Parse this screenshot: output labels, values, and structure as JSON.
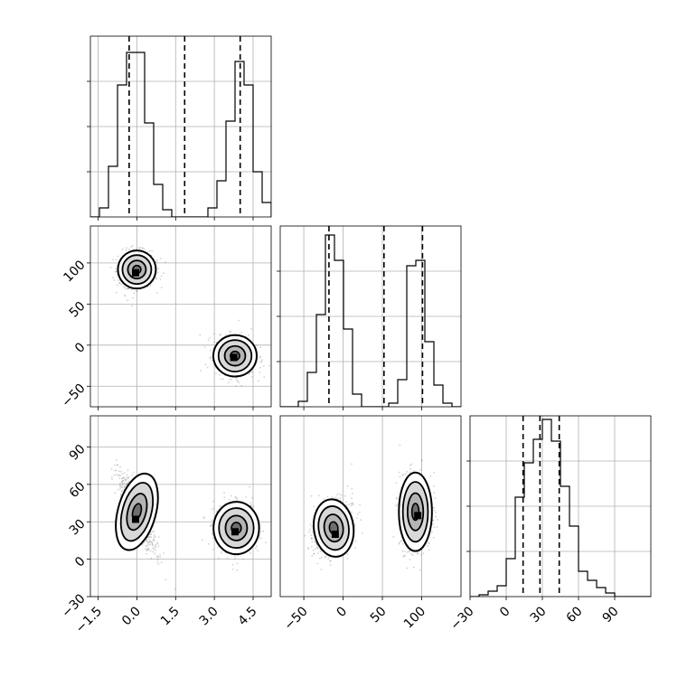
{
  "chart_data": {
    "type": "corner",
    "parameters": 3,
    "grid": true,
    "panels": [
      {
        "id": "hist-p1",
        "type": "histogram",
        "row": 0,
        "col": 0,
        "xlim": [
          -1.8,
          5.2
        ],
        "ylim": [
          0,
          1.0
        ],
        "xticks": [
          -1.5,
          0.0,
          1.5,
          3.0,
          4.5
        ],
        "yticks": [
          0.25,
          0.5,
          0.75
        ],
        "bin_edges": [
          -1.8,
          -1.45,
          -1.1,
          -0.75,
          -0.4,
          -0.05,
          0.3,
          0.65,
          1.0,
          1.35,
          1.7,
          2.05,
          2.4,
          2.75,
          3.1,
          3.45,
          3.8,
          4.15,
          4.5,
          4.85,
          5.2
        ],
        "counts": [
          0.0,
          0.05,
          0.28,
          0.73,
          0.91,
          0.91,
          0.52,
          0.18,
          0.04,
          0.0,
          0.0,
          0.0,
          0.0,
          0.05,
          0.2,
          0.53,
          0.86,
          0.73,
          0.25,
          0.08
        ],
        "quantile_lines": [
          -0.3,
          1.85,
          4.0
        ]
      },
      {
        "id": "scatter-p1-p2",
        "type": "scatter_contour",
        "row": 1,
        "col": 0,
        "xlim": [
          -1.8,
          5.2
        ],
        "ylim": [
          -75,
          145
        ],
        "xticks": [
          -1.5,
          0.0,
          1.5,
          3.0,
          4.5
        ],
        "yticks": [
          -50,
          0,
          50,
          100
        ],
        "ytick_labels": [
          "−50",
          "0",
          "50",
          "100"
        ],
        "clusters": [
          {
            "center": [
              0.0,
              92
            ],
            "sx": 0.35,
            "sy": 11,
            "rho": 0.0,
            "mode": [
              -0.05,
              88
            ]
          },
          {
            "center": [
              3.8,
              -13
            ],
            "sx": 0.4,
            "sy": 12,
            "rho": 0.0,
            "mode": [
              3.75,
              -15
            ]
          }
        ]
      },
      {
        "id": "hist-p2",
        "type": "histogram",
        "row": 1,
        "col": 1,
        "xlim": [
          -80,
          150
        ],
        "ylim": [
          0,
          1.0
        ],
        "xticks": [
          -50,
          0,
          50,
          100
        ],
        "yticks": [
          0.25,
          0.5,
          0.75
        ],
        "bin_edges": [
          -80,
          -68.5,
          -57,
          -45.5,
          -34,
          -22.5,
          -11,
          0.5,
          12,
          23.5,
          35,
          46.5,
          58,
          69.5,
          81,
          92.5,
          104,
          115.5,
          127,
          138.5,
          150
        ],
        "counts": [
          0.0,
          0.0,
          0.03,
          0.19,
          0.51,
          0.95,
          0.81,
          0.43,
          0.07,
          0.0,
          0.0,
          0.0,
          0.02,
          0.15,
          0.78,
          0.81,
          0.36,
          0.12,
          0.02,
          0.0
        ],
        "quantile_lines": [
          -18,
          52,
          101
        ]
      },
      {
        "id": "scatter-p1-p3",
        "type": "scatter_contour",
        "row": 2,
        "col": 0,
        "xlim": [
          -1.8,
          5.2
        ],
        "ylim": [
          -30,
          115
        ],
        "xticks": [
          -1.5,
          0.0,
          1.5,
          3.0,
          4.5
        ],
        "xtick_labels": [
          "−1.5",
          "0.0",
          "1.5",
          "3.0",
          "4.5"
        ],
        "yticks": [
          -30,
          0,
          30,
          60,
          90
        ],
        "ytick_labels": [
          "−30",
          "0",
          "30",
          "60",
          "90"
        ],
        "clusters": [
          {
            "center": [
              0.0,
              38
            ],
            "sx": 0.35,
            "sy": 15,
            "rho": -0.85,
            "mode": [
              -0.05,
              32
            ]
          },
          {
            "center": [
              3.85,
              25
            ],
            "sx": 0.42,
            "sy": 10,
            "rho": 0.0,
            "mode": [
              3.8,
              22
            ]
          }
        ]
      },
      {
        "id": "scatter-p2-p3",
        "type": "scatter_contour",
        "row": 2,
        "col": 1,
        "xlim": [
          -80,
          150
        ],
        "ylim": [
          -30,
          115
        ],
        "xticks": [
          -50,
          0,
          50,
          100
        ],
        "xtick_labels": [
          "−50",
          "0",
          "50",
          "100"
        ],
        "clusters": [
          {
            "center": [
              -12,
              25
            ],
            "sx": 12,
            "sy": 11,
            "rho": 0.3,
            "mode": [
              -10,
              20
            ]
          },
          {
            "center": [
              92,
              38
            ],
            "sx": 10,
            "sy": 15,
            "rho": 0.0,
            "mode": [
              95,
              35
            ]
          }
        ]
      },
      {
        "id": "hist-p3",
        "type": "histogram",
        "row": 2,
        "col": 2,
        "xlim": [
          -30,
          120
        ],
        "ylim": [
          0,
          1.0
        ],
        "xticks": [
          -30,
          0,
          30,
          60,
          90
        ],
        "xtick_labels": [
          "−30",
          "0",
          "30",
          "60",
          "90"
        ],
        "yticks": [
          0.25,
          0.5,
          0.75
        ],
        "bin_edges": [
          -30,
          -22.5,
          -15,
          -7.5,
          0,
          7.5,
          15,
          22.5,
          30,
          37.5,
          45,
          52.5,
          60,
          67.5,
          75,
          82.5,
          90,
          97.5,
          105,
          112.5,
          120
        ],
        "counts": [
          0.0,
          0.01,
          0.03,
          0.06,
          0.21,
          0.55,
          0.74,
          0.87,
          0.98,
          0.86,
          0.61,
          0.39,
          0.14,
          0.09,
          0.05,
          0.02,
          0.0,
          0.0,
          0.0,
          0.0
        ],
        "quantile_lines": [
          14,
          28,
          44
        ]
      }
    ]
  }
}
